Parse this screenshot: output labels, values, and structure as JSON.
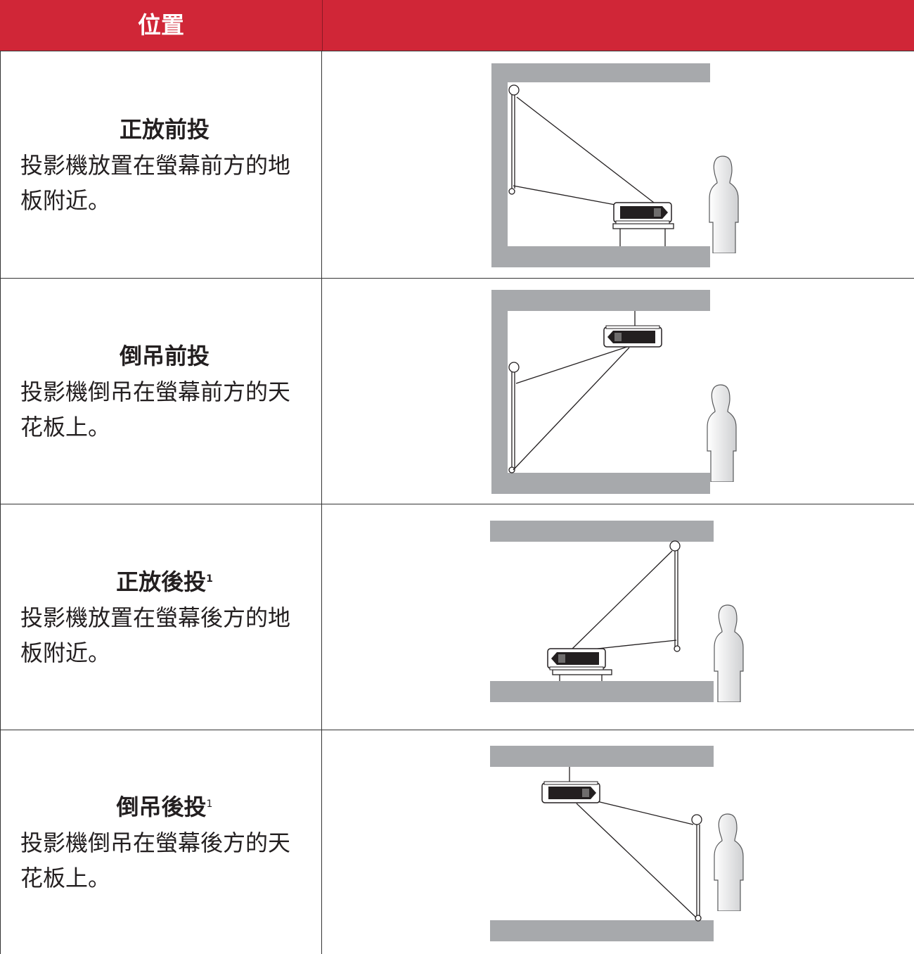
{
  "header": {
    "title": "位置"
  },
  "rows": [
    {
      "title": "正放前投",
      "description": "投影機放置在螢幕前方的地板附近。"
    },
    {
      "title": "倒吊前投",
      "description": "投影機倒吊在螢幕前方的天花板上。"
    },
    {
      "title": "正放後投",
      "superscript": "1",
      "description": "投影機放置在螢幕後方的地板附近。"
    },
    {
      "title": "倒吊後投",
      "superscript": "1",
      "description": "投影機倒吊在螢幕後方的天花板上。"
    }
  ]
}
